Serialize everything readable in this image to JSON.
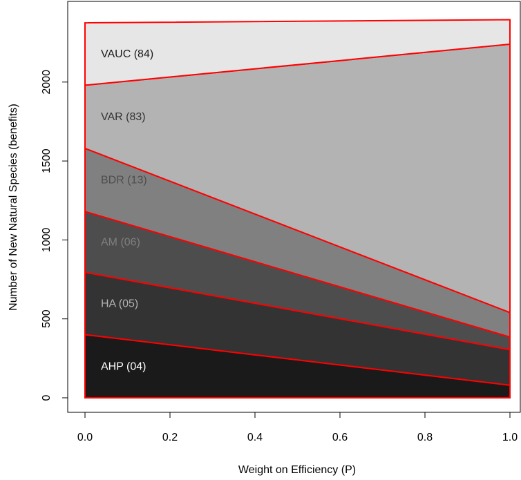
{
  "chart_data": {
    "type": "area",
    "xlabel": "Weight on Efficiency (P)",
    "ylabel": "Number of New Natural Species (benefits)",
    "xlim": [
      0.0,
      1.0
    ],
    "ylim": [
      0,
      2400
    ],
    "x_ticks": [
      "0.0",
      "0.2",
      "0.4",
      "0.6",
      "0.8",
      "1.0"
    ],
    "y_ticks": [
      "0",
      "500",
      "1000",
      "1500",
      "2000"
    ],
    "x": [
      0.0,
      1.0
    ],
    "grid": false,
    "outline_color": "#ff0000",
    "series": [
      {
        "name": "AHP (04)",
        "boundary": [
          400,
          80
        ],
        "fill": "#1a1a1a",
        "label_color": "#ffffff"
      },
      {
        "name": "HA (05)",
        "boundary": [
          795,
          305
        ],
        "fill": "#333333",
        "label_color": "#b3b3b3"
      },
      {
        "name": "AM (06)",
        "boundary": [
          1180,
          385
        ],
        "fill": "#4d4d4d",
        "label_color": "#7f7f7f"
      },
      {
        "name": "BDR (13)",
        "boundary": [
          1580,
          540
        ],
        "fill": "#808080",
        "label_color": "#4d4d4d"
      },
      {
        "name": "VAR (83)",
        "boundary": [
          1980,
          2240
        ],
        "fill": "#b3b3b3",
        "label_color": "#333333"
      },
      {
        "name": "VAUC (84)",
        "boundary": [
          2375,
          2395
        ],
        "fill": "#e6e6e6",
        "label_color": "#1a1a1a"
      }
    ]
  }
}
